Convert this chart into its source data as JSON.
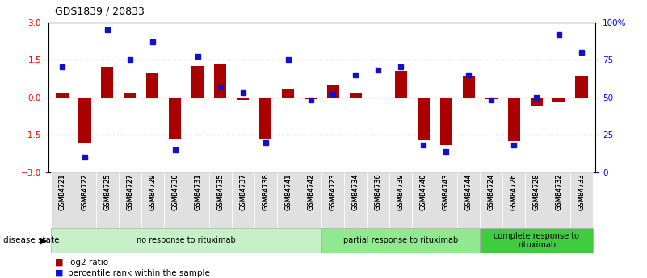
{
  "title": "GDS1839 / 20833",
  "samples": [
    "GSM84721",
    "GSM84722",
    "GSM84725",
    "GSM84727",
    "GSM84729",
    "GSM84730",
    "GSM84731",
    "GSM84735",
    "GSM84737",
    "GSM84738",
    "GSM84741",
    "GSM84742",
    "GSM84723",
    "GSM84734",
    "GSM84736",
    "GSM84739",
    "GSM84740",
    "GSM84743",
    "GSM84744",
    "GSM84724",
    "GSM84726",
    "GSM84728",
    "GSM84732",
    "GSM84733"
  ],
  "log2_ratio": [
    0.15,
    -1.85,
    1.2,
    0.15,
    1.0,
    -1.65,
    1.25,
    1.3,
    -0.12,
    -1.65,
    0.35,
    -0.08,
    0.5,
    0.2,
    -0.05,
    1.05,
    -1.7,
    -1.9,
    0.85,
    -0.08,
    -1.75,
    -0.35,
    -0.2,
    0.85
  ],
  "percentile_rank": [
    70,
    10,
    95,
    75,
    87,
    15,
    77,
    57,
    53,
    20,
    75,
    48,
    52,
    65,
    68,
    70,
    18,
    14,
    65,
    48,
    18,
    50,
    92,
    80
  ],
  "groups": [
    {
      "label": "no response to rituximab",
      "start": 0,
      "end": 11,
      "color": "#c8f0c8"
    },
    {
      "label": "partial response to rituximab",
      "start": 12,
      "end": 18,
      "color": "#90e890"
    },
    {
      "label": "complete response to\nrituximab",
      "start": 19,
      "end": 23,
      "color": "#40cc40"
    }
  ],
  "bar_color": "#aa0000",
  "dot_color": "#1111cc",
  "ylim_left": [
    -3,
    3
  ],
  "ylim_right": [
    0,
    100
  ],
  "yticks_left": [
    -3,
    -1.5,
    0,
    1.5,
    3
  ],
  "yticks_right": [
    0,
    25,
    50,
    75,
    100
  ],
  "background_color": "#ffffff"
}
